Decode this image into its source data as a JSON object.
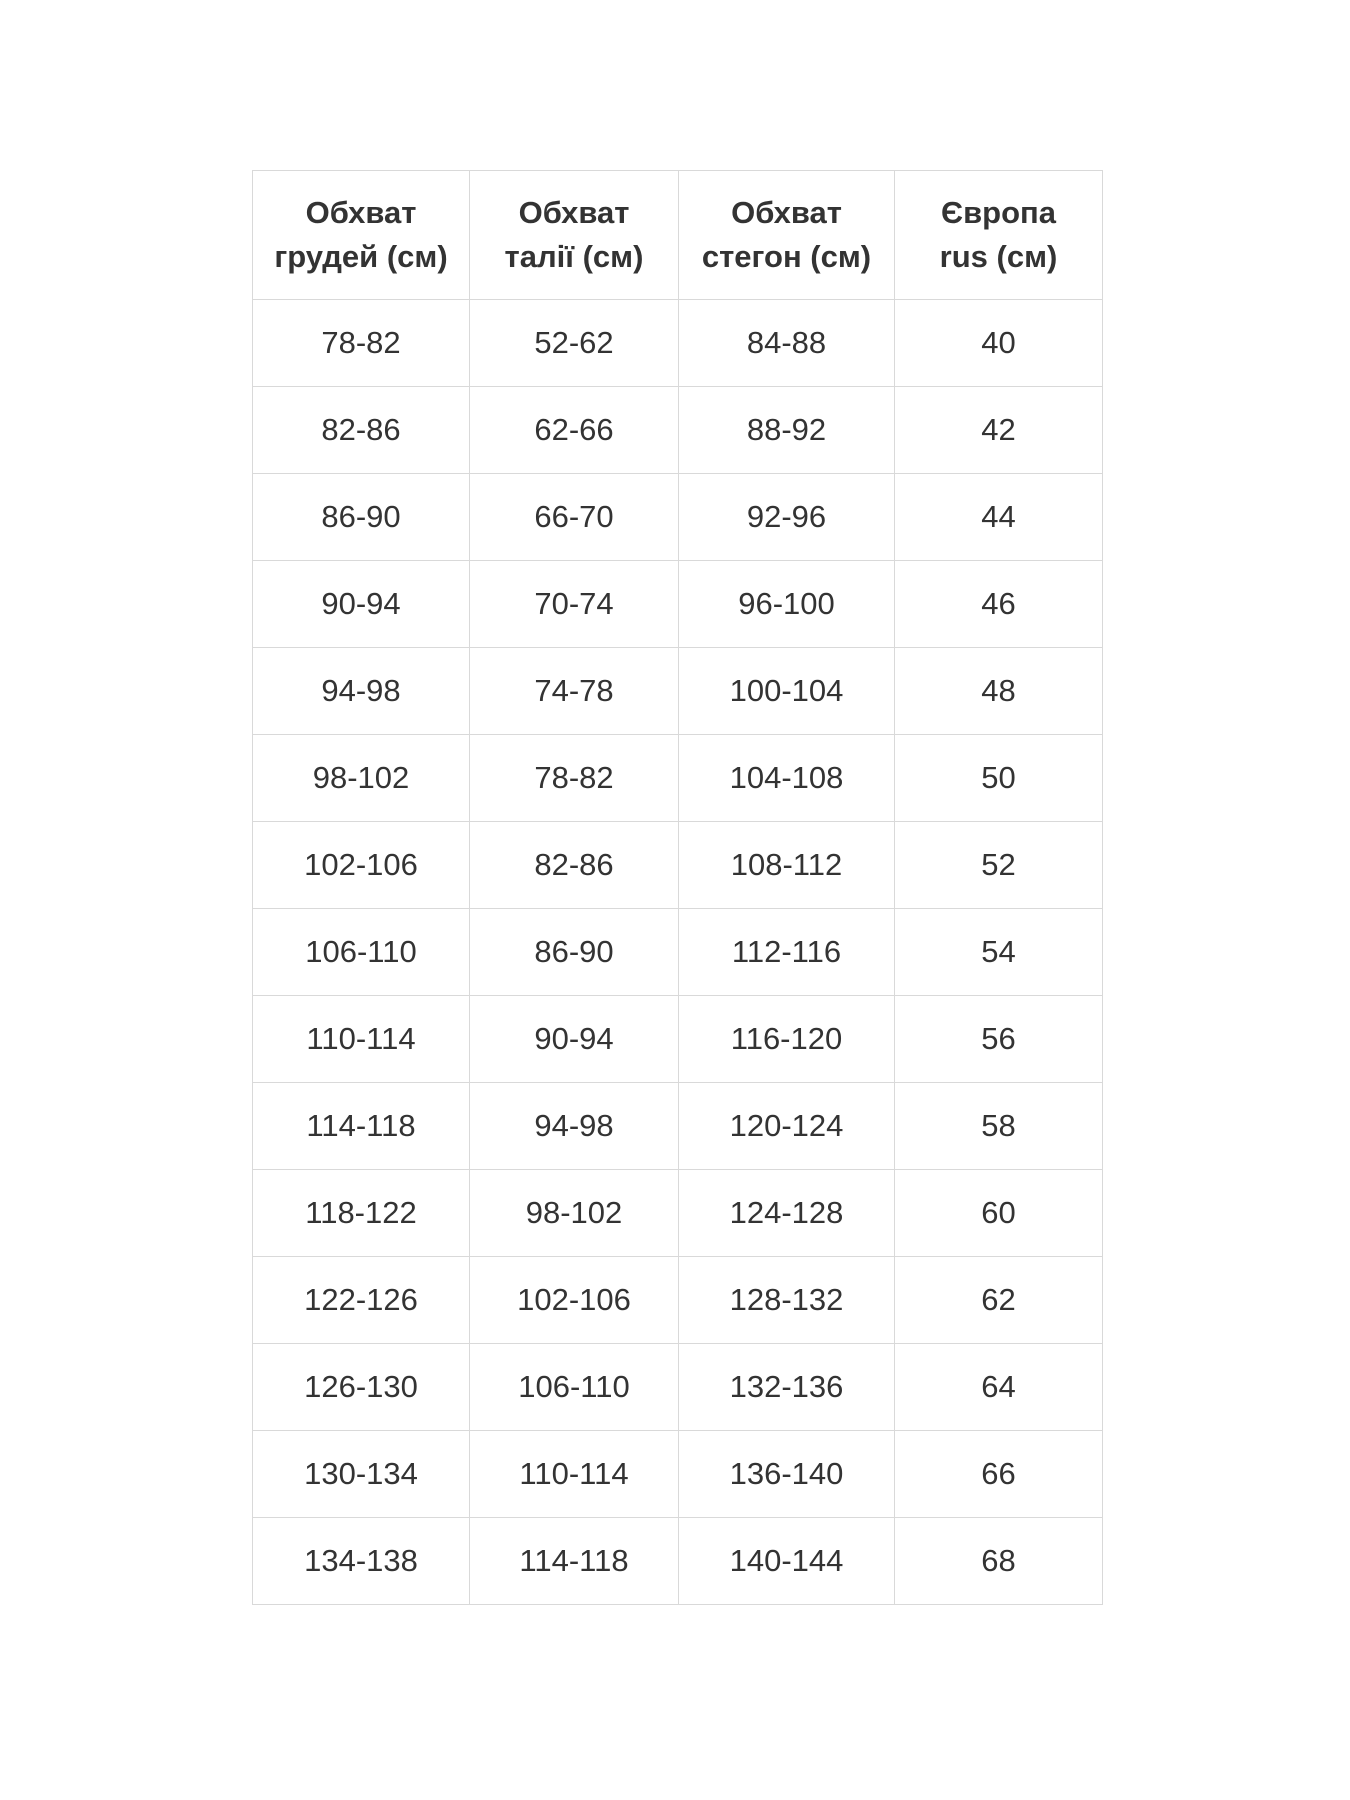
{
  "table": {
    "name": "size-chart",
    "headers": [
      {
        "lines": [
          "Обхват",
          "грудей (см)"
        ]
      },
      {
        "lines": [
          "Обхват",
          "талії (см)"
        ]
      },
      {
        "lines": [
          "Обхват",
          "стегон (см)"
        ]
      },
      {
        "lines": [
          "Європа",
          "rus (см)"
        ]
      }
    ],
    "rows": [
      [
        "78-82",
        "52-62",
        "84-88",
        "40"
      ],
      [
        "82-86",
        "62-66",
        "88-92",
        "42"
      ],
      [
        "86-90",
        "66-70",
        "92-96",
        "44"
      ],
      [
        "90-94",
        "70-74",
        "96-100",
        "46"
      ],
      [
        "94-98",
        "74-78",
        "100-104",
        "48"
      ],
      [
        "98-102",
        "78-82",
        "104-108",
        "50"
      ],
      [
        "102-106",
        "82-86",
        "108-112",
        "52"
      ],
      [
        "106-110",
        "86-90",
        "112-116",
        "54"
      ],
      [
        "110-114",
        "90-94",
        "116-120",
        "56"
      ],
      [
        "114-118",
        "94-98",
        "120-124",
        "58"
      ],
      [
        "118-122",
        "98-102",
        "124-128",
        "60"
      ],
      [
        "122-126",
        "102-106",
        "128-132",
        "62"
      ],
      [
        "126-130",
        "106-110",
        "132-136",
        "64"
      ],
      [
        "130-134",
        "110-114",
        "136-140",
        "66"
      ],
      [
        "134-138",
        "114-118",
        "140-144",
        "68"
      ]
    ]
  },
  "colors": {
    "text": "#333333",
    "border": "#d9d9d9",
    "background": "#ffffff"
  }
}
